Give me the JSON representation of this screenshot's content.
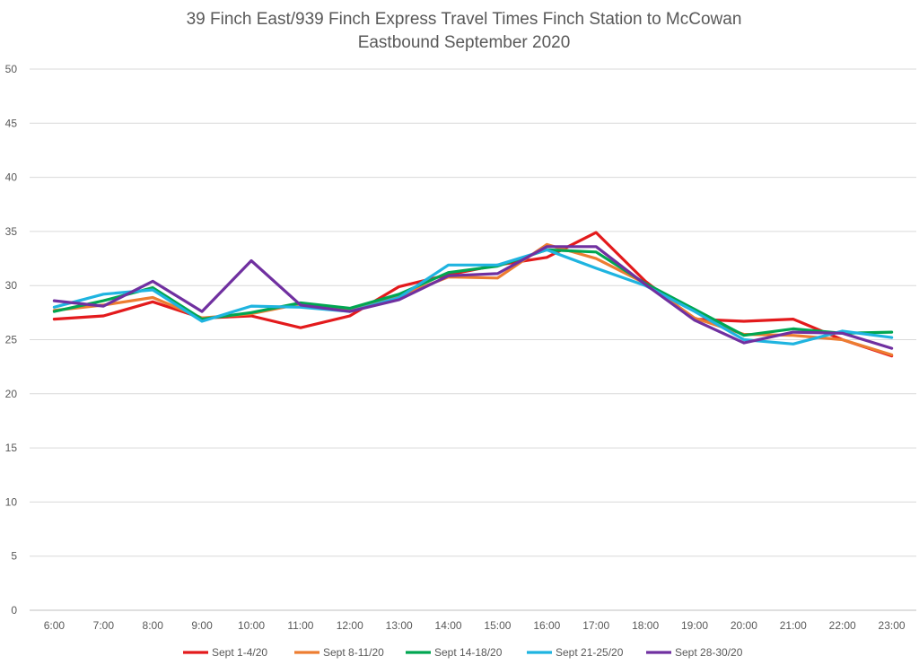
{
  "chart_data": {
    "type": "line",
    "title_lines": [
      "39 Finch East/939 Finch Express Travel Times Finch Station to McCowan",
      "Eastbound  September 2020"
    ],
    "xlabel": "",
    "ylabel": "",
    "ylim": [
      0,
      50
    ],
    "yticks": [
      0,
      5,
      10,
      15,
      20,
      25,
      30,
      35,
      40,
      45,
      50
    ],
    "categories": [
      "6:00",
      "7:00",
      "8:00",
      "9:00",
      "10:00",
      "11:00",
      "12:00",
      "13:00",
      "14:00",
      "15:00",
      "16:00",
      "17:00",
      "18:00",
      "19:00",
      "20:00",
      "21:00",
      "22:00",
      "23:00"
    ],
    "grid": true,
    "legend_position": "bottom",
    "series": [
      {
        "name": "Sept 1-4/20",
        "color": "#e31a1c",
        "values": [
          26.9,
          27.2,
          28.5,
          27.0,
          27.2,
          26.1,
          27.2,
          29.9,
          31.0,
          31.9,
          32.6,
          34.9,
          30.4,
          26.9,
          26.7,
          26.9,
          25.0,
          23.5
        ]
      },
      {
        "name": "Sept 8-11/20",
        "color": "#ed7d31",
        "values": [
          27.7,
          28.2,
          28.9,
          27.0,
          27.4,
          28.3,
          27.8,
          29.0,
          30.8,
          30.7,
          33.8,
          32.5,
          30.2,
          27.0,
          25.5,
          25.4,
          25.0,
          23.6
        ]
      },
      {
        "name": "Sept 14-18/20",
        "color": "#00a651",
        "values": [
          27.6,
          28.6,
          29.8,
          26.9,
          27.5,
          28.4,
          27.9,
          29.2,
          31.2,
          31.8,
          33.3,
          33.1,
          30.2,
          27.8,
          25.4,
          26.0,
          25.6,
          25.7
        ]
      },
      {
        "name": "Sept 21-25/20",
        "color": "#1fb4e0",
        "values": [
          28.0,
          29.2,
          29.6,
          26.7,
          28.1,
          28.0,
          27.6,
          28.9,
          31.9,
          31.9,
          33.3,
          31.6,
          30.0,
          27.6,
          25.0,
          24.6,
          25.8,
          25.2
        ]
      },
      {
        "name": "Sept 28-30/20",
        "color": "#7030a0",
        "values": [
          28.6,
          28.1,
          30.4,
          27.6,
          32.3,
          28.2,
          27.6,
          28.7,
          30.9,
          31.1,
          33.6,
          33.6,
          30.1,
          26.8,
          24.7,
          25.7,
          25.6,
          24.2
        ]
      }
    ]
  }
}
